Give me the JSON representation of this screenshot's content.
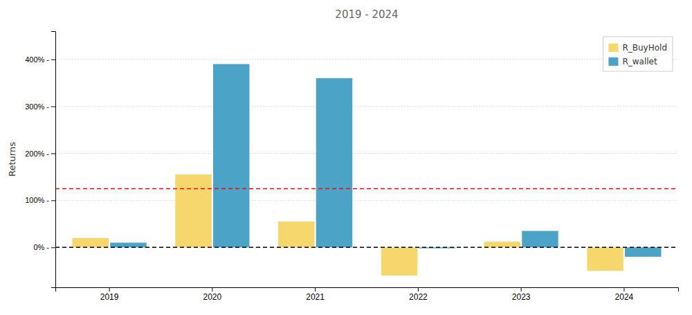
{
  "chart_data": {
    "type": "bar",
    "title": "2019 - 2024",
    "ylabel": "Returns",
    "categories": [
      "2019",
      "2020",
      "2021",
      "2022",
      "2023",
      "2024"
    ],
    "series": [
      {
        "name": "R_BuyHold",
        "color": "#F5D76E",
        "values": [
          0.2,
          1.55,
          0.55,
          -0.6,
          0.12,
          -0.5
        ]
      },
      {
        "name": "R_wallet",
        "color": "#4BA3C7",
        "values": [
          0.1,
          3.9,
          3.6,
          -0.02,
          0.35,
          -0.2
        ]
      }
    ],
    "reference_lines": [
      {
        "value": 1.25,
        "color": "red",
        "line_style": "dashed"
      },
      {
        "value": 0.0,
        "color": "black",
        "line_style": "dashed"
      }
    ],
    "ylim": [
      -0.85,
      4.6
    ],
    "yticks": [
      {
        "value": 0,
        "label": "0% -"
      },
      {
        "value": 1.0,
        "label": "100% -"
      },
      {
        "value": 2.0,
        "label": "200% -"
      },
      {
        "value": 3.0,
        "label": "300% -"
      },
      {
        "value": 4.0,
        "label": "400% -"
      }
    ],
    "grid": true,
    "legend": "upper right"
  }
}
